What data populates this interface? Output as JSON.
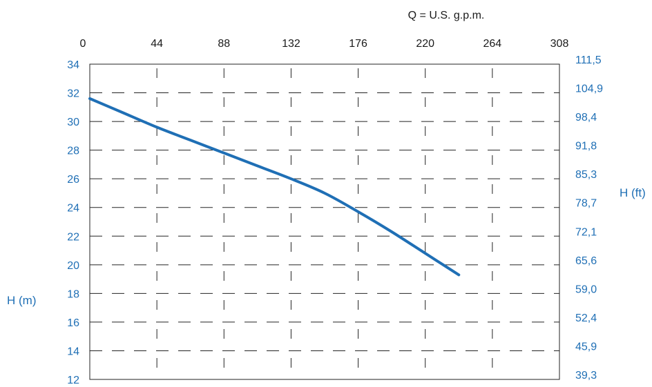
{
  "chart_data": {
    "type": "line",
    "title": "",
    "x_axis_label": "Q = U.S. g.p.m.",
    "x_ticks": [
      "0",
      "44",
      "88",
      "132",
      "176",
      "220",
      "264",
      "308"
    ],
    "xlim": [
      0,
      308
    ],
    "x_axis_position": "top",
    "y_left_label": "H (m)",
    "y_left_ticks": [
      "34",
      "32",
      "30",
      "28",
      "26",
      "24",
      "22",
      "20",
      "18",
      "16",
      "14",
      "12"
    ],
    "ylim": [
      12,
      34
    ],
    "y_right_label": "H (ft)",
    "y_right_ticks": [
      "111,5",
      "104,9",
      "98,4",
      "91,8",
      "85,3",
      "78,7",
      "72,1",
      "65,6",
      "59,0",
      "52,4",
      "45,9",
      "39,3"
    ],
    "grid": true,
    "grid_style": "dashed",
    "series": [
      {
        "x": [
          0,
          22,
          44,
          66,
          88,
          110,
          132,
          154,
          176,
          198,
          220,
          242
        ],
        "y": [
          31.6,
          30.6,
          29.6,
          28.7,
          27.8,
          26.9,
          26.0,
          25.0,
          23.7,
          22.3,
          20.8,
          19.3
        ]
      }
    ],
    "colors": {
      "line": "#1f6fb5",
      "axis_labels": "#1f6fb5",
      "top_labels": "#1a1a1a",
      "grid": "#222222"
    }
  }
}
